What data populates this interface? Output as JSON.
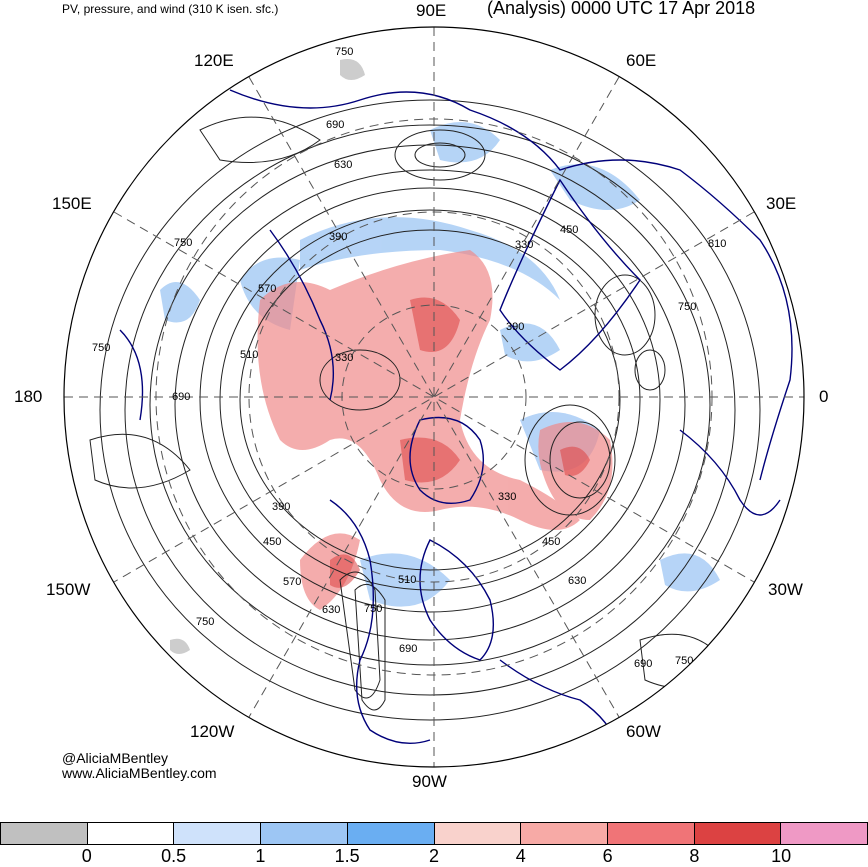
{
  "header": {
    "product": "PV, pressure, and wind (310 K isen. sfc.)",
    "run": "(Analysis) 0000 UTC 17 Apr 2018"
  },
  "map": {
    "projection": "north-polar-stereographic",
    "longitude_labels": [
      "90E",
      "60E",
      "30E",
      "0",
      "30W",
      "60W",
      "90W",
      "120W",
      "150W",
      "180",
      "150E",
      "120E"
    ],
    "pressure_contour_labels": [
      "750",
      "810",
      "690",
      "630",
      "570",
      "510",
      "450",
      "390",
      "330"
    ],
    "colors": {
      "land_outline": "#00007a",
      "contour": "#222222",
      "graticule": "#555555",
      "pv_low": "#9dc6f4",
      "pv_high": "#f08a8a"
    }
  },
  "credits": {
    "handle": "@AliciaMBentley",
    "site": "www.AliciaMBentley.com"
  },
  "colorbar": {
    "ticks": [
      "0",
      "0.5",
      "1",
      "1.5",
      "2",
      "4",
      "6",
      "8",
      "10"
    ],
    "colors": [
      "#c0c0c0",
      "#ffffff",
      "#cfe2fb",
      "#9dc6f4",
      "#6aaef2",
      "#f9d2cc",
      "#f7aaa6",
      "#f07477",
      "#dc4242",
      "#ef99c5"
    ]
  }
}
